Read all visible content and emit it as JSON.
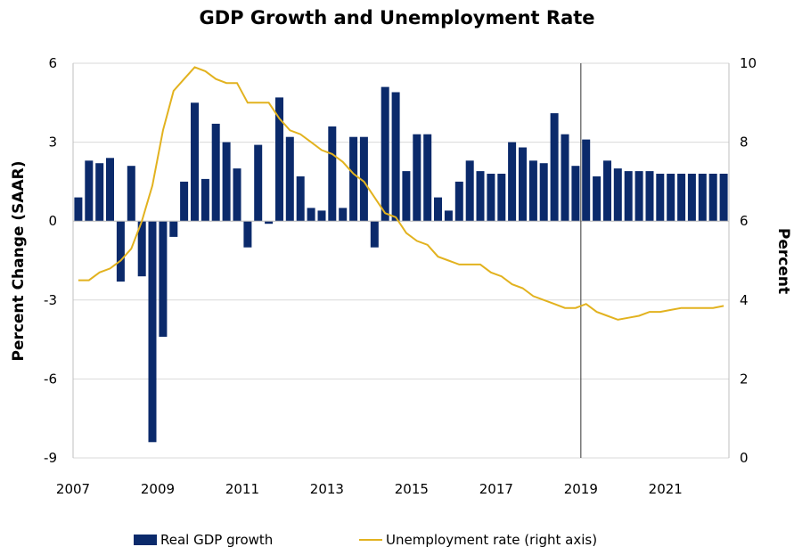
{
  "chart_data": {
    "type": "bar",
    "title": "GDP Growth and Unemployment Rate",
    "xlabel": "",
    "ylabel": "Percent Change (SAAR)",
    "y2label": "Percent",
    "ylim": [
      -9,
      6
    ],
    "y2lim": [
      0,
      10
    ],
    "yticks": [
      "6",
      "3",
      "0",
      "-3",
      "-6",
      "-9"
    ],
    "y2ticks": [
      "10",
      "8",
      "6",
      "4",
      "2",
      "0"
    ],
    "xticks": [
      "2007",
      "2009",
      "2011",
      "2013",
      "2015",
      "2017",
      "2019",
      "2021"
    ],
    "grid": true,
    "forecast_divider_at": "2019Q1",
    "legend_position": "bottom",
    "colors": {
      "gdp": "#0b2a6b",
      "unemployment": "#e2b21f",
      "grid": "#d9d9d9",
      "divider": "#555555"
    },
    "series": [
      {
        "name": "Real GDP growth",
        "kind": "bar",
        "axis": "left",
        "start_period": "2007Q1",
        "values": [
          0.9,
          2.3,
          2.2,
          2.4,
          -2.3,
          2.1,
          -2.1,
          -8.4,
          -4.4,
          -0.6,
          1.5,
          4.5,
          1.6,
          3.7,
          3.0,
          2.0,
          -1.0,
          2.9,
          -0.1,
          4.7,
          3.2,
          1.7,
          0.5,
          0.4,
          3.6,
          0.5,
          3.2,
          3.2,
          -1.0,
          5.1,
          4.9,
          1.9,
          3.3,
          3.3,
          0.9,
          0.4,
          1.5,
          2.3,
          1.9,
          1.8,
          1.8,
          3.0,
          2.8,
          2.3,
          2.2,
          4.1,
          3.3,
          2.1,
          3.1,
          1.7,
          2.3,
          2.0,
          1.9,
          1.9,
          1.9,
          1.8,
          1.8,
          1.8,
          1.8,
          1.8,
          1.8,
          1.8
        ]
      },
      {
        "name": "Unemployment rate (right axis)",
        "kind": "line",
        "axis": "right",
        "start_period": "2007Q1",
        "values": [
          4.5,
          4.5,
          4.7,
          4.8,
          5.0,
          5.3,
          6.0,
          6.9,
          8.3,
          9.3,
          9.6,
          9.9,
          9.8,
          9.6,
          9.5,
          9.5,
          9.0,
          9.0,
          9.0,
          8.6,
          8.3,
          8.2,
          8.0,
          7.8,
          7.7,
          7.5,
          7.2,
          7.0,
          6.6,
          6.2,
          6.1,
          5.7,
          5.5,
          5.4,
          5.1,
          5.0,
          4.9,
          4.9,
          4.9,
          4.7,
          4.6,
          4.4,
          4.3,
          4.1,
          4.0,
          3.9,
          3.8,
          3.8,
          3.9,
          3.7,
          3.6,
          3.5,
          3.55,
          3.6,
          3.7,
          3.7,
          3.75,
          3.8,
          3.8,
          3.8,
          3.8,
          3.85
        ]
      }
    ]
  }
}
